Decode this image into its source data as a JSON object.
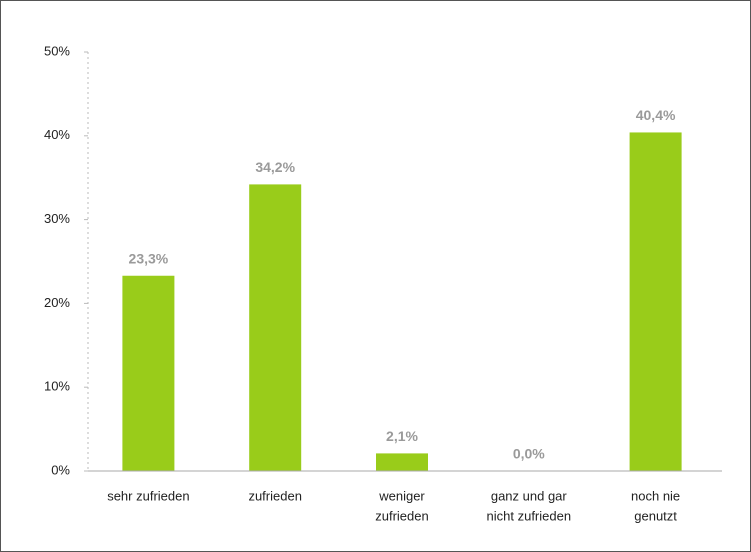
{
  "chart_data": {
    "type": "bar",
    "categories": [
      [
        "sehr zufrieden"
      ],
      [
        "zufrieden"
      ],
      [
        "weniger",
        "zufrieden"
      ],
      [
        "ganz und gar",
        "nicht zufrieden"
      ],
      [
        "noch nie",
        "genutzt"
      ]
    ],
    "values": [
      23.3,
      34.2,
      2.1,
      0.0,
      40.4
    ],
    "value_labels": [
      "23,3%",
      "34,2%",
      "2,1%",
      "0,0%",
      "40,4%"
    ],
    "color": "#99cc1a",
    "ylim": [
      0,
      50
    ],
    "yticks": [
      {
        "value": 0,
        "label": "0%"
      },
      {
        "value": 10,
        "label": "10%"
      },
      {
        "value": 20,
        "label": "20%"
      },
      {
        "value": 30,
        "label": "30%"
      },
      {
        "value": 40,
        "label": "40%"
      },
      {
        "value": 50,
        "label": "50%"
      }
    ]
  }
}
